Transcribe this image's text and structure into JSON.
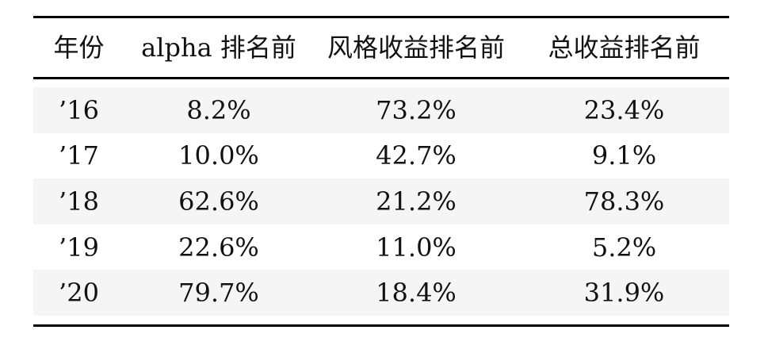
{
  "table": {
    "headers": [
      "年份",
      "alpha 排名前",
      "风格收益排名前",
      "总收益排名前"
    ],
    "rows": [
      {
        "year": "’16",
        "alpha": "8.2%",
        "style_return": "73.2%",
        "total_return": "23.4%"
      },
      {
        "year": "’17",
        "alpha": "10.0%",
        "style_return": "42.7%",
        "total_return": "9.1%"
      },
      {
        "year": "’18",
        "alpha": "62.6%",
        "style_return": "21.2%",
        "total_return": "78.3%"
      },
      {
        "year": "’19",
        "alpha": "22.6%",
        "style_return": "11.0%",
        "total_return": "5.2%"
      },
      {
        "year": "’20",
        "alpha": "79.7%",
        "style_return": "18.4%",
        "total_return": "31.9%"
      }
    ],
    "colors": {
      "stripe": "#f5f5f5",
      "rule": "#000000",
      "text": "#111111",
      "background": "#ffffff"
    }
  },
  "chart_data": {
    "type": "table",
    "title": "",
    "columns": [
      "年份",
      "alpha 排名前",
      "风格收益排名前",
      "总收益排名前"
    ],
    "categories": [
      "’16",
      "’17",
      "’18",
      "’19",
      "’20"
    ],
    "series": [
      {
        "name": "alpha 排名前",
        "values": [
          8.2,
          10.0,
          62.6,
          22.6,
          79.7
        ],
        "unit": "%"
      },
      {
        "name": "风格收益排名前",
        "values": [
          73.2,
          42.7,
          21.2,
          11.0,
          18.4
        ],
        "unit": "%"
      },
      {
        "name": "总收益排名前",
        "values": [
          23.4,
          9.1,
          78.3,
          5.2,
          31.9
        ],
        "unit": "%"
      }
    ]
  }
}
